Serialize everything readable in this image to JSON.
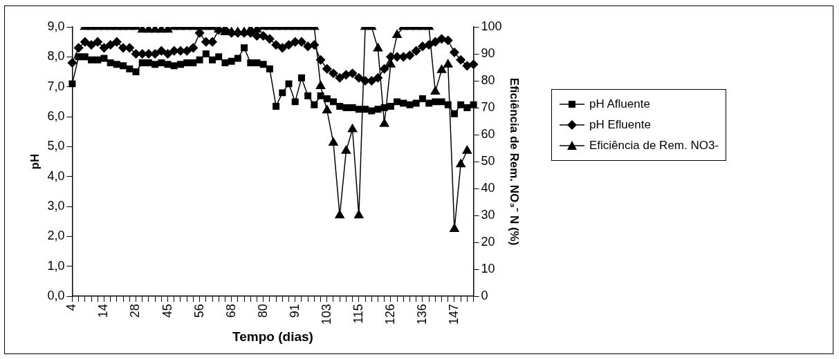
{
  "chart_data": {
    "type": "line",
    "xlabel": "Tempo (dias)",
    "ylabel": "pH",
    "y2label": "Eficiência de Rem. NO₃⁻ N (%)",
    "categories": [
      "4",
      null,
      null,
      null,
      null,
      "14",
      null,
      null,
      null,
      null,
      "28",
      null,
      null,
      null,
      null,
      "45",
      null,
      null,
      null,
      null,
      "56",
      null,
      null,
      null,
      null,
      "68",
      null,
      null,
      null,
      null,
      "80",
      null,
      null,
      null,
      null,
      "91",
      null,
      null,
      null,
      null,
      "103",
      null,
      null,
      null,
      null,
      "115",
      null,
      null,
      null,
      null,
      "126",
      null,
      null,
      null,
      null,
      "136",
      null,
      null,
      null,
      null,
      "147",
      null,
      null,
      null
    ],
    "series": [
      {
        "name": "pH Afluente",
        "color": "#000000",
        "marker": "square",
        "values": [
          7.1,
          8.0,
          8.0,
          7.9,
          7.9,
          7.95,
          7.8,
          7.75,
          7.7,
          7.6,
          7.5,
          7.8,
          7.8,
          7.75,
          7.8,
          7.75,
          7.7,
          7.75,
          7.8,
          7.8,
          7.9,
          8.1,
          7.9,
          8.0,
          7.8,
          7.85,
          7.95,
          8.3,
          7.8,
          7.8,
          7.75,
          7.6,
          6.35,
          6.8,
          7.1,
          6.5,
          7.3,
          6.7,
          6.4,
          6.7,
          6.6,
          6.5,
          6.35,
          6.3,
          6.3,
          6.25,
          6.25,
          6.2,
          6.25,
          6.3,
          6.35,
          6.5,
          6.45,
          6.4,
          6.45,
          6.6,
          6.45,
          6.5,
          6.5,
          6.4,
          6.1,
          6.4,
          6.3,
          6.4
        ]
      },
      {
        "name": "pH Efluente",
        "color": "#000000",
        "marker": "diamond",
        "values": [
          7.8,
          8.3,
          8.5,
          8.4,
          8.5,
          8.3,
          8.4,
          8.5,
          8.3,
          8.3,
          8.1,
          8.1,
          8.1,
          8.1,
          8.2,
          8.1,
          8.2,
          8.2,
          8.2,
          8.3,
          8.8,
          8.5,
          8.5,
          8.9,
          8.9,
          8.8,
          8.8,
          8.8,
          8.8,
          8.7,
          8.7,
          8.6,
          8.4,
          8.3,
          8.4,
          8.5,
          8.5,
          8.35,
          8.4,
          7.9,
          7.6,
          7.45,
          7.3,
          7.4,
          7.45,
          7.3,
          7.2,
          7.2,
          7.3,
          7.6,
          8.0,
          8.0,
          8.0,
          8.05,
          8.2,
          8.35,
          8.4,
          8.5,
          8.6,
          8.55,
          8.15,
          7.9,
          7.7,
          7.75
        ]
      },
      {
        "name": "Eficiência de Rem. NO3-",
        "color": "#000000",
        "marker": "triangle",
        "axis": "y2",
        "values": [
          null,
          null,
          100,
          100,
          100,
          100,
          100,
          100,
          100,
          100,
          100,
          99,
          99,
          99,
          99,
          99,
          100,
          100,
          100,
          100,
          100,
          100,
          100,
          99,
          98,
          98,
          98,
          98,
          99,
          99,
          100,
          100,
          100,
          100,
          100,
          100,
          100,
          100,
          100,
          78,
          69,
          57,
          30,
          54,
          62,
          30,
          100,
          100,
          92,
          64,
          86,
          97,
          100,
          100,
          100,
          100,
          100,
          76,
          84,
          86,
          25,
          49,
          54,
          null
        ]
      }
    ],
    "ylim": [
      0,
      9
    ],
    "yticks": [
      {
        "value": 0,
        "label": "0,0"
      },
      {
        "value": 1,
        "label": "1,0"
      },
      {
        "value": 2,
        "label": "2,0"
      },
      {
        "value": 3,
        "label": "3,0"
      },
      {
        "value": 4,
        "label": "4,0"
      },
      {
        "value": 5,
        "label": "5,0"
      },
      {
        "value": 6,
        "label": "6,0"
      },
      {
        "value": 7,
        "label": "7,0"
      },
      {
        "value": 8,
        "label": "8,0"
      },
      {
        "value": 9,
        "label": "9,0"
      }
    ],
    "y2lim": [
      0,
      100
    ],
    "y2ticks": [
      0,
      10,
      20,
      30,
      40,
      50,
      60,
      70,
      80,
      90,
      100
    ],
    "grid": false,
    "legend": "right",
    "line_style": "solid"
  }
}
